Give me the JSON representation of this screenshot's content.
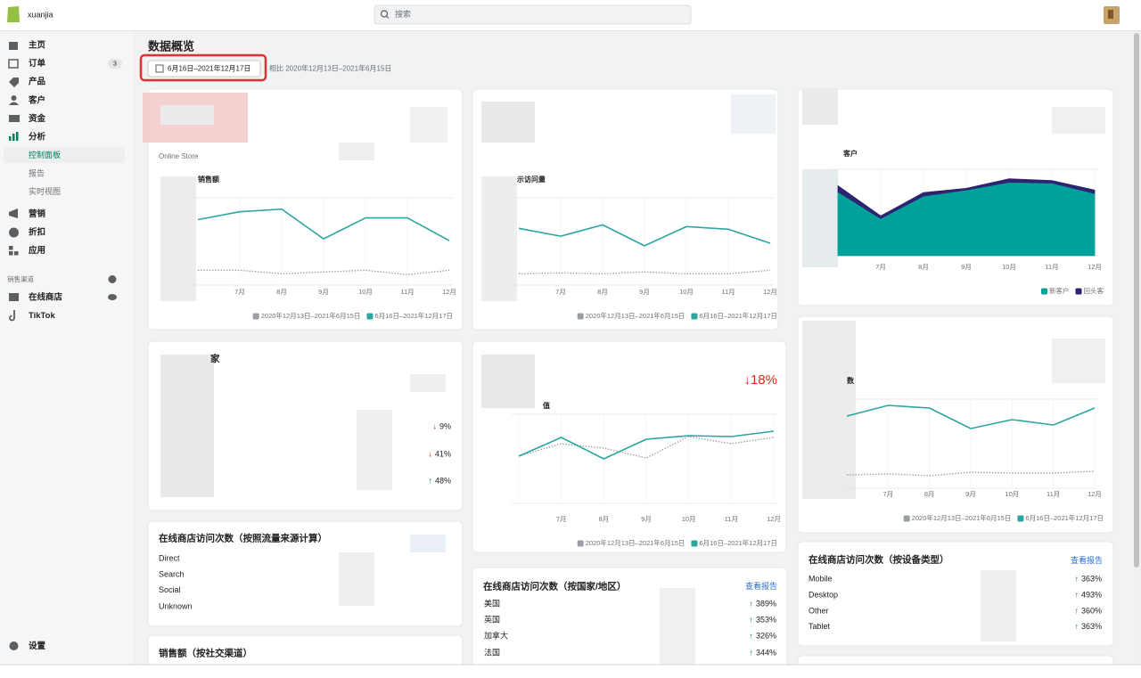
{
  "topbar": {
    "store": "xuanjia",
    "search_placeholder": "搜索"
  },
  "sidebar": {
    "items": [
      {
        "label": "主页"
      },
      {
        "label": "订单",
        "badge": 3
      },
      {
        "label": "产品"
      },
      {
        "label": "客户"
      },
      {
        "label": "资金"
      },
      {
        "label": "分析"
      }
    ],
    "analytics_sub": [
      "控制面板",
      "报告",
      "实时视图"
    ],
    "more_items": [
      "营销",
      "折扣",
      "应用"
    ],
    "channels_title": "销售渠道",
    "channels": [
      "在线商店",
      "TikTok"
    ],
    "settings": "设置"
  },
  "header": {
    "title": "数据概览",
    "date_range": "6月16日–2021年12月17日",
    "compare": "相比 2020年12月13日–2021年6月15日"
  },
  "chart_data": [
    {
      "type": "line",
      "title": "销售额",
      "subtitle": "Online Store",
      "categories": [
        null,
        "7月",
        "8月",
        "9月",
        "10月",
        "11月",
        "12月"
      ],
      "ylim": [
        0,
        100
      ],
      "series": [
        {
          "name": "2020年12月13日–2021年6月15日",
          "color": "#9a9fa5",
          "dash": "dotted",
          "values": [
            17,
            17,
            13,
            15,
            17,
            12,
            17
          ]
        },
        {
          "name": "6月16日–2021年12月17日",
          "color": "#2ba5a0",
          "values": [
            75,
            84,
            87,
            53,
            77,
            77,
            51
          ]
        }
      ]
    },
    {
      "type": "line",
      "title": "示访问量",
      "categories": [
        null,
        "7月",
        "8月",
        "9月",
        "10月",
        "11月",
        "12月"
      ],
      "ylim": [
        0,
        100
      ],
      "series": [
        {
          "name": "2020年12月13日–2021年6月15日",
          "color": "#9a9fa5",
          "dash": "dotted",
          "values": [
            13,
            14,
            13,
            15,
            13,
            13,
            17
          ]
        },
        {
          "name": "6月16日–2021年12月17日",
          "color": "#2ba5a0",
          "values": [
            65,
            56,
            69,
            45,
            67,
            64,
            48
          ]
        }
      ]
    },
    {
      "type": "area",
      "stacked": true,
      "title": "客户",
      "categories": [
        null,
        "7月",
        "8月",
        "9月",
        "10月",
        "11月",
        "12月"
      ],
      "ylim": [
        0,
        100
      ],
      "series": [
        {
          "name": "新客户",
          "color": "#00a19a",
          "values": [
            74,
            43,
            69,
            76,
            85,
            84,
            72
          ]
        },
        {
          "name": "回头客",
          "color": "#2c2470",
          "values": [
            7,
            3,
            4,
            2,
            4,
            3,
            4
          ]
        }
      ]
    },
    {
      "type": "line",
      "title": "值",
      "annotation": "↓18%",
      "categories": [
        null,
        "7月",
        "8月",
        "9月",
        "10月",
        "11月",
        "12月"
      ],
      "ylim": [
        0,
        100
      ],
      "series": [
        {
          "name": "2020年12月13日–2021年6月15日",
          "color": "#9a9fa5",
          "dash": "dotted",
          "values": [
            53,
            67,
            62,
            51,
            75,
            67,
            74
          ]
        },
        {
          "name": "6月16日–2021年12月17日",
          "color": "#2ba5a0",
          "values": [
            53,
            74,
            50,
            72,
            76,
            75,
            81
          ]
        }
      ]
    },
    {
      "type": "line",
      "title": "数",
      "categories": [
        null,
        "7月",
        "8月",
        "9月",
        "10月",
        "11月",
        "12月"
      ],
      "ylim": [
        0,
        100
      ],
      "series": [
        {
          "name": "2020年12月13日–2021年6月15日",
          "color": "#9a9fa5",
          "dash": "dotted",
          "values": [
            15,
            16,
            14,
            18,
            17,
            17,
            19
          ]
        },
        {
          "name": "6月16日–2021年12月17日",
          "color": "#2ba5a0",
          "values": [
            81,
            93,
            90,
            67,
            77,
            71,
            90
          ]
        }
      ]
    }
  ],
  "cards": {
    "repeat": {
      "title": "家",
      "rows": [
        {
          "arrow": "↓",
          "change": "9%"
        },
        {
          "arrow": "↓",
          "change": "41%"
        },
        {
          "arrow": "↑",
          "change": "48%"
        }
      ]
    },
    "traffic_source": {
      "title": "在线商店访问次数（按照流量来源计算）",
      "rows": [
        "Direct",
        "Search",
        "Social",
        "Unknown"
      ]
    },
    "by_country": {
      "title": "在线商店访问次数（按国家/地区）",
      "link": "查看报告",
      "rows": [
        {
          "name": "美国",
          "arrow": "↑",
          "change": "389%"
        },
        {
          "name": "英国",
          "arrow": "↑",
          "change": "353%"
        },
        {
          "name": "加拿大",
          "arrow": "↑",
          "change": "326%"
        },
        {
          "name": "法国",
          "arrow": "↑",
          "change": "344%"
        }
      ]
    },
    "by_device": {
      "title": "在线商店访问次数（按设备类型）",
      "link": "查看报告",
      "rows": [
        {
          "name": "Mobile",
          "arrow": "↑",
          "change": "363%"
        },
        {
          "name": "Desktop",
          "arrow": "↑",
          "change": "493%"
        },
        {
          "name": "Other",
          "arrow": "↑",
          "change": "360%"
        },
        {
          "name": "Tablet",
          "arrow": "↑",
          "change": "363%"
        }
      ]
    },
    "social_sales": {
      "title": "销售额（按社交渠道）"
    }
  }
}
